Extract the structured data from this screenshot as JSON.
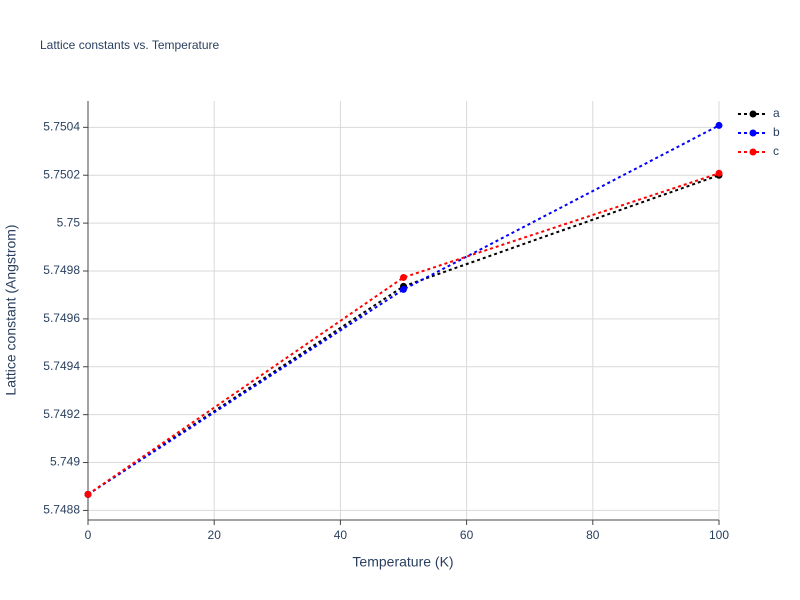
{
  "chart_data": {
    "type": "line",
    "title": "Lattice constants vs. Temperature",
    "x_label": "Temperature (K)",
    "y_label": "Lattice constant (Angstrom)",
    "x": [
      0,
      50,
      100
    ],
    "series": [
      {
        "name": "a",
        "color": "#000000",
        "values": [
          5.748867,
          5.749736,
          5.7502
        ]
      },
      {
        "name": "b",
        "color": "#0000ff",
        "values": [
          5.748867,
          5.749723,
          5.750408
        ]
      },
      {
        "name": "c",
        "color": "#ff0000",
        "values": [
          5.748867,
          5.749773,
          5.750208
        ]
      }
    ],
    "xlim": [
      0,
      100
    ],
    "xticks": [
      0,
      20,
      40,
      60,
      80,
      100
    ],
    "ylim": [
      5.74876,
      5.75051
    ],
    "yticks": [
      5.7488,
      5.749,
      5.7492,
      5.7494,
      5.7496,
      5.7498,
      5.75,
      5.7502,
      5.7504
    ],
    "grid": true,
    "legend": "top-right"
  }
}
